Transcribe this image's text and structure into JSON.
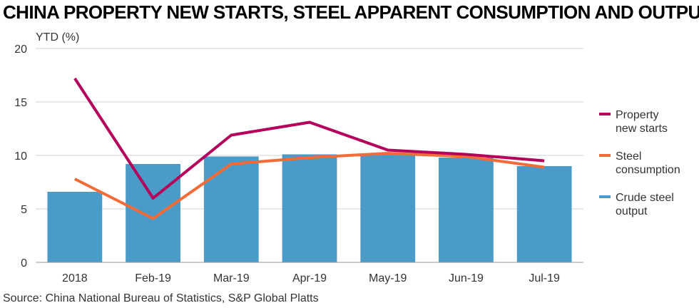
{
  "title": "CHINA PROPERTY NEW STARTS, STEEL APPARENT CONSUMPTION AND OUTPUT",
  "source": "Source: China National Bureau of Statistics, S&P Global Platts",
  "colors": {
    "property": "#b5005b",
    "steel_consumption": "#f26b38",
    "crude_steel": "#4a9bc7",
    "grid": "#d0d0d0",
    "axis": "#999999"
  },
  "chart_data": {
    "type": "bar",
    "ylabel": "YTD (%)",
    "ylim": [
      0,
      20
    ],
    "yticks": [
      0,
      5,
      10,
      15,
      20
    ],
    "grid": true,
    "legend_position": "right",
    "categories": [
      "2018",
      "Feb-19",
      "Mar-19",
      "Apr-19",
      "May-19",
      "Jun-19",
      "Jul-19"
    ],
    "series": [
      {
        "name": "Property new starts",
        "type": "line",
        "values": [
          17.2,
          6.0,
          11.9,
          13.1,
          10.5,
          10.1,
          9.5
        ]
      },
      {
        "name": "Steel consumption",
        "type": "line",
        "values": [
          7.8,
          4.1,
          9.2,
          9.8,
          10.2,
          9.9,
          8.9
        ]
      },
      {
        "name": "Crude steel output",
        "type": "bar",
        "values": [
          6.6,
          9.2,
          9.9,
          10.1,
          10.2,
          9.8,
          9.0
        ]
      }
    ],
    "legend": [
      {
        "lines": [
          "Property",
          "new starts"
        ]
      },
      {
        "lines": [
          "Steel",
          "consumption"
        ]
      },
      {
        "lines": [
          "Crude steel",
          "output"
        ]
      }
    ]
  }
}
